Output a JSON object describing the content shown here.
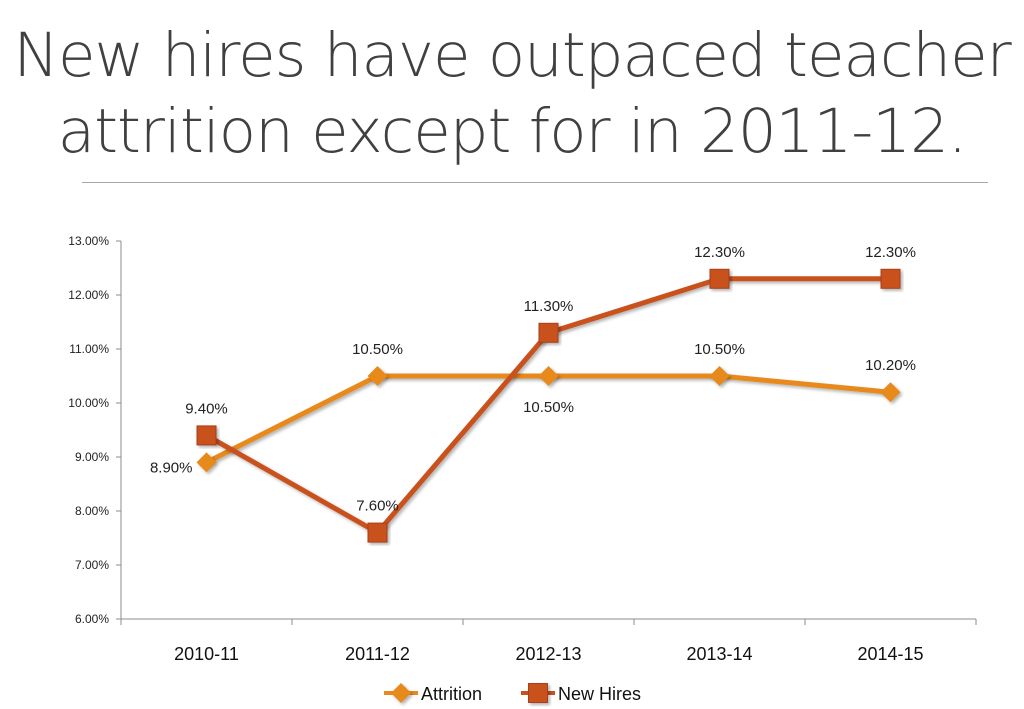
{
  "slide": {
    "title_line1": "New hires have outpaced teacher",
    "title_line2": "attrition except for in 2011-12."
  },
  "chart_data": {
    "type": "line",
    "title": "",
    "xlabel": "",
    "ylabel": "",
    "categories": [
      "2010-11",
      "2011-12",
      "2012-13",
      "2013-14",
      "2014-15"
    ],
    "ylim": [
      6.0,
      13.0
    ],
    "yticks": [
      6.0,
      7.0,
      8.0,
      9.0,
      10.0,
      11.0,
      12.0,
      13.0
    ],
    "ytick_labels": [
      "6.00%",
      "7.00%",
      "8.00%",
      "9.00%",
      "10.00%",
      "11.00%",
      "12.00%",
      "13.00%"
    ],
    "grid": false,
    "legend_position": "bottom",
    "series": [
      {
        "name": "Attrition",
        "values": [
          8.9,
          10.5,
          10.5,
          10.5,
          10.2
        ],
        "labels": [
          "8.90%",
          "10.50%",
          "10.50%",
          "10.50%",
          "10.20%"
        ],
        "label_side": [
          "left",
          "above",
          "below",
          "above",
          "above"
        ],
        "color": "#E8891E",
        "marker": "diamond"
      },
      {
        "name": "New Hires",
        "values": [
          9.4,
          7.6,
          11.3,
          12.3,
          12.3
        ],
        "labels": [
          "9.40%",
          "7.60%",
          "11.30%",
          "12.30%",
          "12.30%"
        ],
        "label_side": [
          "above",
          "above",
          "above",
          "above",
          "above"
        ],
        "color": "#C9511F",
        "marker": "square"
      }
    ]
  }
}
